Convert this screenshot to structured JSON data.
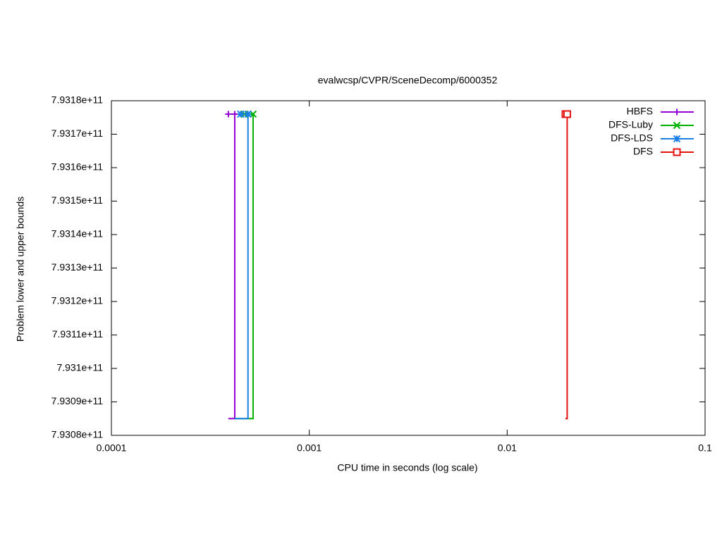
{
  "chart_data": {
    "type": "line",
    "title": "evalwcsp/CVPR/SceneDecomp/6000352",
    "x_label": "CPU time in seconds (log scale)",
    "y_label": "Problem lower and upper bounds",
    "x_log_scale": true,
    "xlim": [
      0.0001,
      0.1
    ],
    "xticks": [
      0.0001,
      0.001,
      0.01,
      0.1
    ],
    "ylim": [
      793080000000,
      793180000000
    ],
    "yticks": [
      {
        "value": 793080000000,
        "label": "7.9308e+11"
      },
      {
        "value": 793090000000,
        "label": "7.9309e+11"
      },
      {
        "value": 793100000000,
        "label": "7.931e+11"
      },
      {
        "value": 793110000000,
        "label": "7.9311e+11"
      },
      {
        "value": 793120000000,
        "label": "7.9312e+11"
      },
      {
        "value": 793130000000,
        "label": "7.9313e+11"
      },
      {
        "value": 793140000000,
        "label": "7.9314e+11"
      },
      {
        "value": 793150000000,
        "label": "7.9315e+11"
      },
      {
        "value": 793160000000,
        "label": "7.9316e+11"
      },
      {
        "value": 793170000000,
        "label": "7.9317e+11"
      },
      {
        "value": 793180000000,
        "label": "7.9318e+11"
      }
    ],
    "legend_position": "top-right",
    "series": [
      {
        "name": "HBFS",
        "color": "#9400d3",
        "marker": "plus",
        "x": [
          0.00039,
          0.00042,
          0.00042,
          0.00039
        ],
        "values": [
          793176000000,
          793176000000,
          793085000000,
          793085000000
        ]
      },
      {
        "name": "DFS-Luby",
        "color": "#00b000",
        "marker": "cross",
        "x": [
          0.00047,
          0.00052,
          0.00052,
          0.00042
        ],
        "values": [
          793176000000,
          793176000000,
          793085000000,
          793085000000
        ]
      },
      {
        "name": "DFS-LDS",
        "color": "#1a7fe6",
        "marker": "asterisk",
        "x": [
          0.00045,
          0.00049,
          0.00049,
          0.00042
        ],
        "values": [
          793176000000,
          793176000000,
          793085000000,
          793085000000
        ]
      },
      {
        "name": "DFS",
        "color": "#e51010",
        "marker": "square",
        "x": [
          0.0197,
          0.0201,
          0.0201,
          0.0197
        ],
        "values": [
          793176000000,
          793176000000,
          793085000000,
          793085000000
        ]
      }
    ]
  }
}
